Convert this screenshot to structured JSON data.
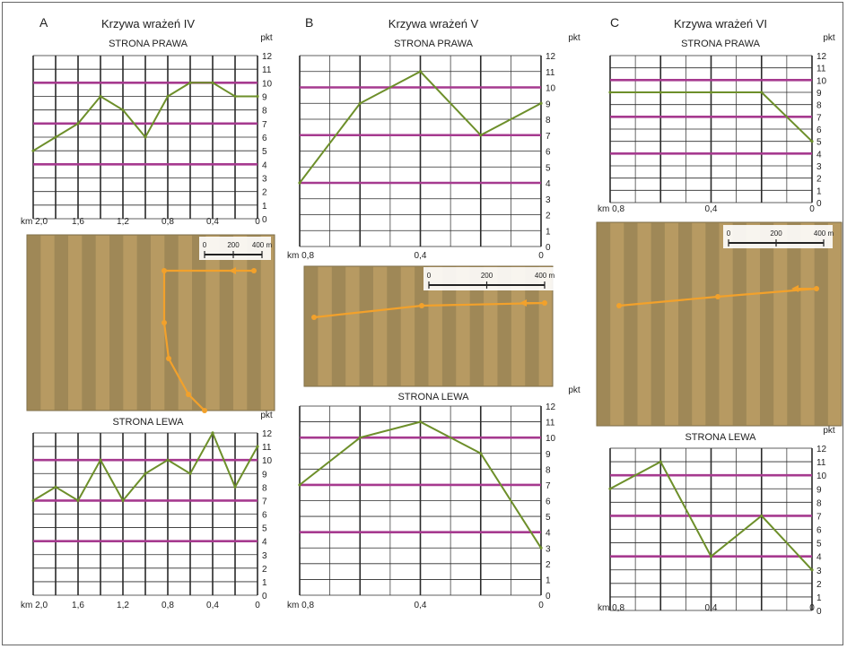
{
  "colors": {
    "grid": "#2a2a2a",
    "threshold": "#a63a8f",
    "series": "#6d8f2a",
    "route": "#f2a12b",
    "field_a": "#b79a62",
    "field_b": "#8c7a4e"
  },
  "panels": [
    {
      "letter": "A",
      "title": "Krzywa wrażeń IV",
      "photo": {
        "scale_labels": [
          "0",
          "200",
          "400 m"
        ]
      }
    },
    {
      "letter": "B",
      "title": "Krzywa wrażeń V",
      "photo": {
        "scale_labels": [
          "0",
          "200",
          "400 m"
        ]
      }
    },
    {
      "letter": "C",
      "title": "Krzywa wrażeń VI",
      "photo": {
        "scale_labels": [
          "0",
          "200",
          "400 m"
        ]
      }
    }
  ],
  "chart_data": [
    {
      "type": "line",
      "panel": "A",
      "subtitle": "STRONA PRAWA",
      "ylabel": "pkt",
      "ylim": [
        0,
        12
      ],
      "yticks": [
        0,
        1,
        2,
        3,
        4,
        5,
        6,
        7,
        8,
        9,
        10,
        11,
        12
      ],
      "xlim": [
        2.0,
        0
      ],
      "x_unit": "km",
      "xtick_labels": [
        {
          "x": 2.0,
          "label": "km 2,0"
        },
        {
          "x": 1.6,
          "label": "1,6"
        },
        {
          "x": 1.2,
          "label": "1,2"
        },
        {
          "x": 0.8,
          "label": "0,8"
        },
        {
          "x": 0.4,
          "label": "0,4"
        },
        {
          "x": 0,
          "label": "0"
        }
      ],
      "reference_lines": [
        4,
        7,
        10
      ],
      "series": [
        {
          "x": [
            2.0,
            1.8,
            1.6,
            1.4,
            1.2,
            1.0,
            0.8,
            0.6,
            0.4,
            0.2,
            0
          ],
          "values": [
            5,
            6,
            7,
            9,
            8,
            6,
            9,
            10,
            10,
            9,
            9
          ]
        }
      ]
    },
    {
      "type": "line",
      "panel": "A",
      "subtitle": "STRONA LEWA",
      "ylabel": "pkt",
      "ylim": [
        0,
        12
      ],
      "yticks": [
        0,
        1,
        2,
        3,
        4,
        5,
        6,
        7,
        8,
        9,
        10,
        11,
        12
      ],
      "xlim": [
        2.0,
        0
      ],
      "x_unit": "km",
      "xtick_labels": [
        {
          "x": 2.0,
          "label": "km 2,0"
        },
        {
          "x": 1.6,
          "label": "1,6"
        },
        {
          "x": 1.2,
          "label": "1,2"
        },
        {
          "x": 0.8,
          "label": "0,8"
        },
        {
          "x": 0.4,
          "label": "0,4"
        },
        {
          "x": 0,
          "label": "0"
        }
      ],
      "reference_lines": [
        4,
        7,
        10
      ],
      "series": [
        {
          "x": [
            2.0,
            1.8,
            1.6,
            1.4,
            1.2,
            1.0,
            0.8,
            0.6,
            0.4,
            0.2,
            0
          ],
          "values": [
            7,
            8,
            7,
            10,
            7,
            9,
            10,
            9,
            12,
            8,
            11
          ]
        }
      ]
    },
    {
      "type": "line",
      "panel": "B",
      "subtitle": "STRONA PRAWA",
      "ylabel": "pkt",
      "ylim": [
        0,
        12
      ],
      "yticks": [
        0,
        1,
        2,
        3,
        4,
        5,
        6,
        7,
        8,
        9,
        10,
        11,
        12
      ],
      "xlim": [
        0.8,
        0
      ],
      "x_unit": "km",
      "xtick_labels": [
        {
          "x": 0.8,
          "label": "km 0,8"
        },
        {
          "x": 0.4,
          "label": "0,4"
        },
        {
          "x": 0,
          "label": "0"
        }
      ],
      "reference_lines": [
        4,
        7,
        10
      ],
      "series": [
        {
          "x": [
            0.8,
            0.6,
            0.4,
            0.2,
            0
          ],
          "values": [
            4,
            9,
            11,
            7,
            9
          ]
        }
      ]
    },
    {
      "type": "line",
      "panel": "B",
      "subtitle": "STRONA LEWA",
      "ylabel": "pkt",
      "ylim": [
        0,
        12
      ],
      "yticks": [
        0,
        1,
        2,
        3,
        4,
        5,
        6,
        7,
        8,
        9,
        10,
        11,
        12
      ],
      "xlim": [
        0.8,
        0
      ],
      "x_unit": "km",
      "xtick_labels": [
        {
          "x": 0.8,
          "label": "km 0,8"
        },
        {
          "x": 0.4,
          "label": "0,4"
        },
        {
          "x": 0,
          "label": "0"
        }
      ],
      "reference_lines": [
        4,
        7,
        10
      ],
      "series": [
        {
          "x": [
            0.8,
            0.6,
            0.4,
            0.2,
            0
          ],
          "values": [
            7,
            10,
            11,
            9,
            3
          ]
        }
      ]
    },
    {
      "type": "line",
      "panel": "C",
      "subtitle": "STRONA PRAWA",
      "ylabel": "pkt",
      "ylim": [
        0,
        12
      ],
      "yticks": [
        0,
        1,
        2,
        3,
        4,
        5,
        6,
        7,
        8,
        9,
        10,
        11,
        12
      ],
      "xlim": [
        0.8,
        0
      ],
      "x_unit": "km",
      "xtick_labels": [
        {
          "x": 0.8,
          "label": "km 0,8"
        },
        {
          "x": 0.4,
          "label": "0,4"
        },
        {
          "x": 0,
          "label": "0"
        }
      ],
      "reference_lines": [
        4,
        7,
        10
      ],
      "series": [
        {
          "x": [
            0.8,
            0.6,
            0.4,
            0.2,
            0
          ],
          "values": [
            9,
            9,
            9,
            9,
            5
          ]
        }
      ]
    },
    {
      "type": "line",
      "panel": "C",
      "subtitle": "STRONA LEWA",
      "ylabel": "pkt",
      "ylim": [
        0,
        12
      ],
      "yticks": [
        0,
        1,
        2,
        3,
        4,
        5,
        6,
        7,
        8,
        9,
        10,
        11,
        12
      ],
      "xlim": [
        0.8,
        0
      ],
      "x_unit": "km",
      "xtick_labels": [
        {
          "x": 0.8,
          "label": "km 0,8"
        },
        {
          "x": 0.4,
          "label": "0,4"
        },
        {
          "x": 0,
          "label": "0"
        }
      ],
      "reference_lines": [
        4,
        7,
        10
      ],
      "series": [
        {
          "x": [
            0.8,
            0.6,
            0.4,
            0.2,
            0
          ],
          "values": [
            9,
            11,
            4,
            7,
            3
          ]
        }
      ]
    }
  ]
}
